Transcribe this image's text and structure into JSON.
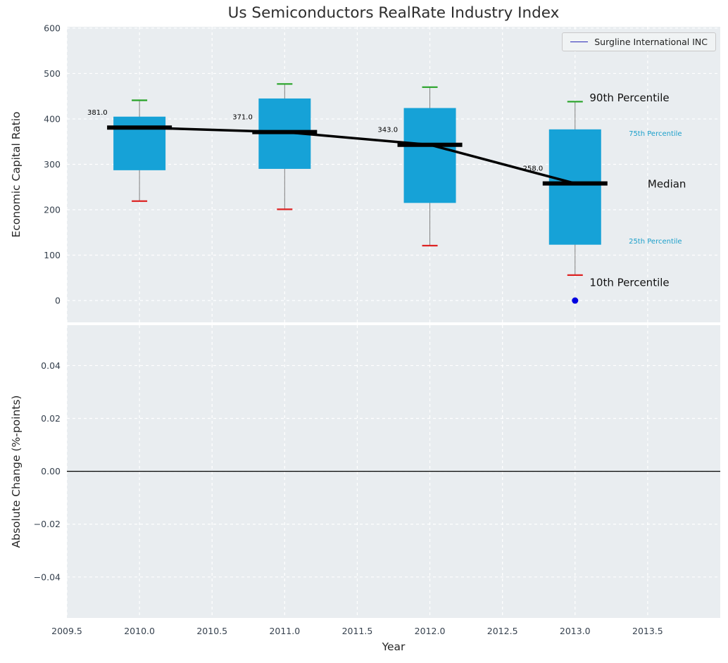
{
  "title": "Us Semiconductors RealRate Industry Index",
  "legend": {
    "label": "Surgline International INC",
    "line_color": "#2828b8"
  },
  "axes": {
    "xlabel": "Year",
    "top_ylabel": "Economic Capital Ratio",
    "bottom_ylabel": "Absolute Change (%-points)"
  },
  "colors": {
    "box_fill": "#16a2d7",
    "whisker": "#808080",
    "cap_top": "#27a327",
    "cap_bottom": "#dd2222",
    "median": "#000000",
    "company_point": "#0000e0",
    "plot_bg": "#e9edf0",
    "grid": "#ffffff",
    "tick_text": "#36414e",
    "percentile_text": "#1b9fca"
  },
  "chart_data": [
    {
      "type": "boxplot",
      "title": "Us Semiconductors RealRate Industry Index",
      "xlabel": "Year",
      "ylabel": "Economic Capital Ratio",
      "xlim": [
        2009.5,
        2014.0
      ],
      "ylim": [
        0,
        600
      ],
      "grid": true,
      "legend_position": "upper right",
      "xticks": [
        2009.5,
        2010.0,
        2010.5,
        2011.0,
        2011.5,
        2012.0,
        2012.5,
        2013.0,
        2013.5
      ],
      "xtick_labels": [
        "2009.5",
        "2010.0",
        "2010.5",
        "2011.0",
        "2011.5",
        "2012.0",
        "2012.5",
        "2013.0",
        "2013.5"
      ],
      "yticks": [
        0,
        100,
        200,
        300,
        400,
        500,
        600
      ],
      "ytick_labels": [
        "0",
        "100",
        "200",
        "300",
        "400",
        "500",
        "600"
      ],
      "boxes": [
        {
          "x": 2010,
          "p10": 219,
          "p25": 287,
          "median": 381,
          "p75": 405,
          "p90": 441
        },
        {
          "x": 2011,
          "p10": 201,
          "p25": 290,
          "median": 371,
          "p75": 445,
          "p90": 477
        },
        {
          "x": 2012,
          "p10": 121,
          "p25": 215,
          "median": 343,
          "p75": 424,
          "p90": 470
        },
        {
          "x": 2013,
          "p10": 56,
          "p25": 123,
          "median": 258,
          "p75": 377,
          "p90": 438
        }
      ],
      "median_series": {
        "x": [
          2010,
          2011,
          2012,
          2013
        ],
        "y": [
          381,
          371,
          343,
          258
        ]
      },
      "median_labels": [
        {
          "text": "381.0",
          "x": 2009.71,
          "y": 414
        },
        {
          "text": "371.0",
          "x": 2010.71,
          "y": 404
        },
        {
          "text": "343.0",
          "x": 2011.71,
          "y": 376
        },
        {
          "text": "258.0",
          "x": 2012.71,
          "y": 291
        }
      ],
      "annotations": [
        {
          "text": "90th Percentile",
          "x": 2013.1,
          "y": 447,
          "size": 15,
          "color": "#111111"
        },
        {
          "text": "75th Percentile",
          "x": 2013.37,
          "y": 368,
          "size": 10,
          "color": "#1b9fca"
        },
        {
          "text": "Median",
          "x": 2013.5,
          "y": 257,
          "size": 15,
          "color": "#111111"
        },
        {
          "text": "25th Percentile",
          "x": 2013.37,
          "y": 131,
          "size": 10,
          "color": "#1b9fca"
        },
        {
          "text": "10th Percentile",
          "x": 2013.1,
          "y": 40,
          "size": 15,
          "color": "#111111"
        }
      ],
      "company_point": {
        "x": 2013,
        "y": 0
      }
    },
    {
      "type": "line",
      "ylabel": "Absolute Change (%-points)",
      "ylim": [
        -0.055,
        0.055
      ],
      "grid": true,
      "yticks": [
        -0.04,
        -0.02,
        0.0,
        0.02,
        0.04
      ],
      "ytick_labels": [
        "−0.04",
        "−0.02",
        "0.00",
        "0.02",
        "0.04"
      ],
      "zero_line": true,
      "series": []
    }
  ]
}
